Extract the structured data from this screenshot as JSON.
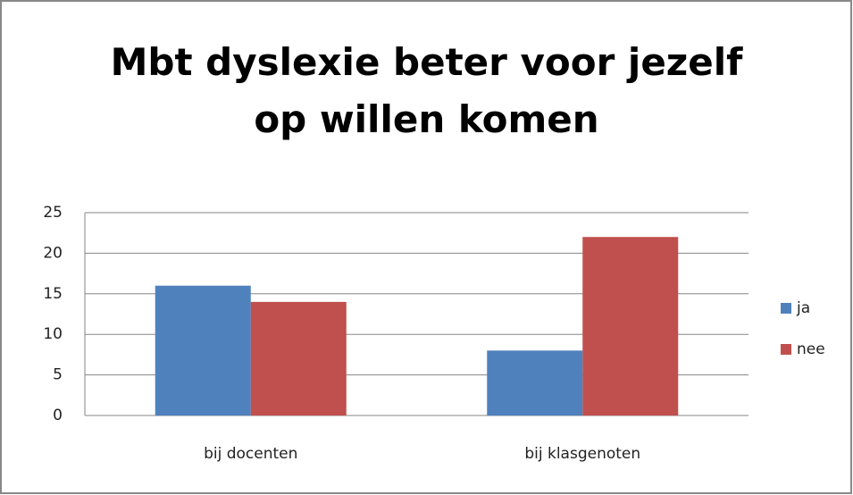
{
  "chart_data": {
    "type": "bar",
    "title": "Mbt dyslexie beter voor jezelf op willen komen",
    "categories": [
      "bij docenten",
      "bij klasgenoten"
    ],
    "series": [
      {
        "name": "ja",
        "color": "#4f81bd",
        "values": [
          16,
          8
        ]
      },
      {
        "name": "nee",
        "color": "#c0504d",
        "values": [
          14,
          22
        ]
      }
    ],
    "ylim": [
      0,
      25
    ],
    "yticks": [
      0,
      5,
      10,
      15,
      20,
      25
    ],
    "grid": true,
    "legend": "right"
  }
}
